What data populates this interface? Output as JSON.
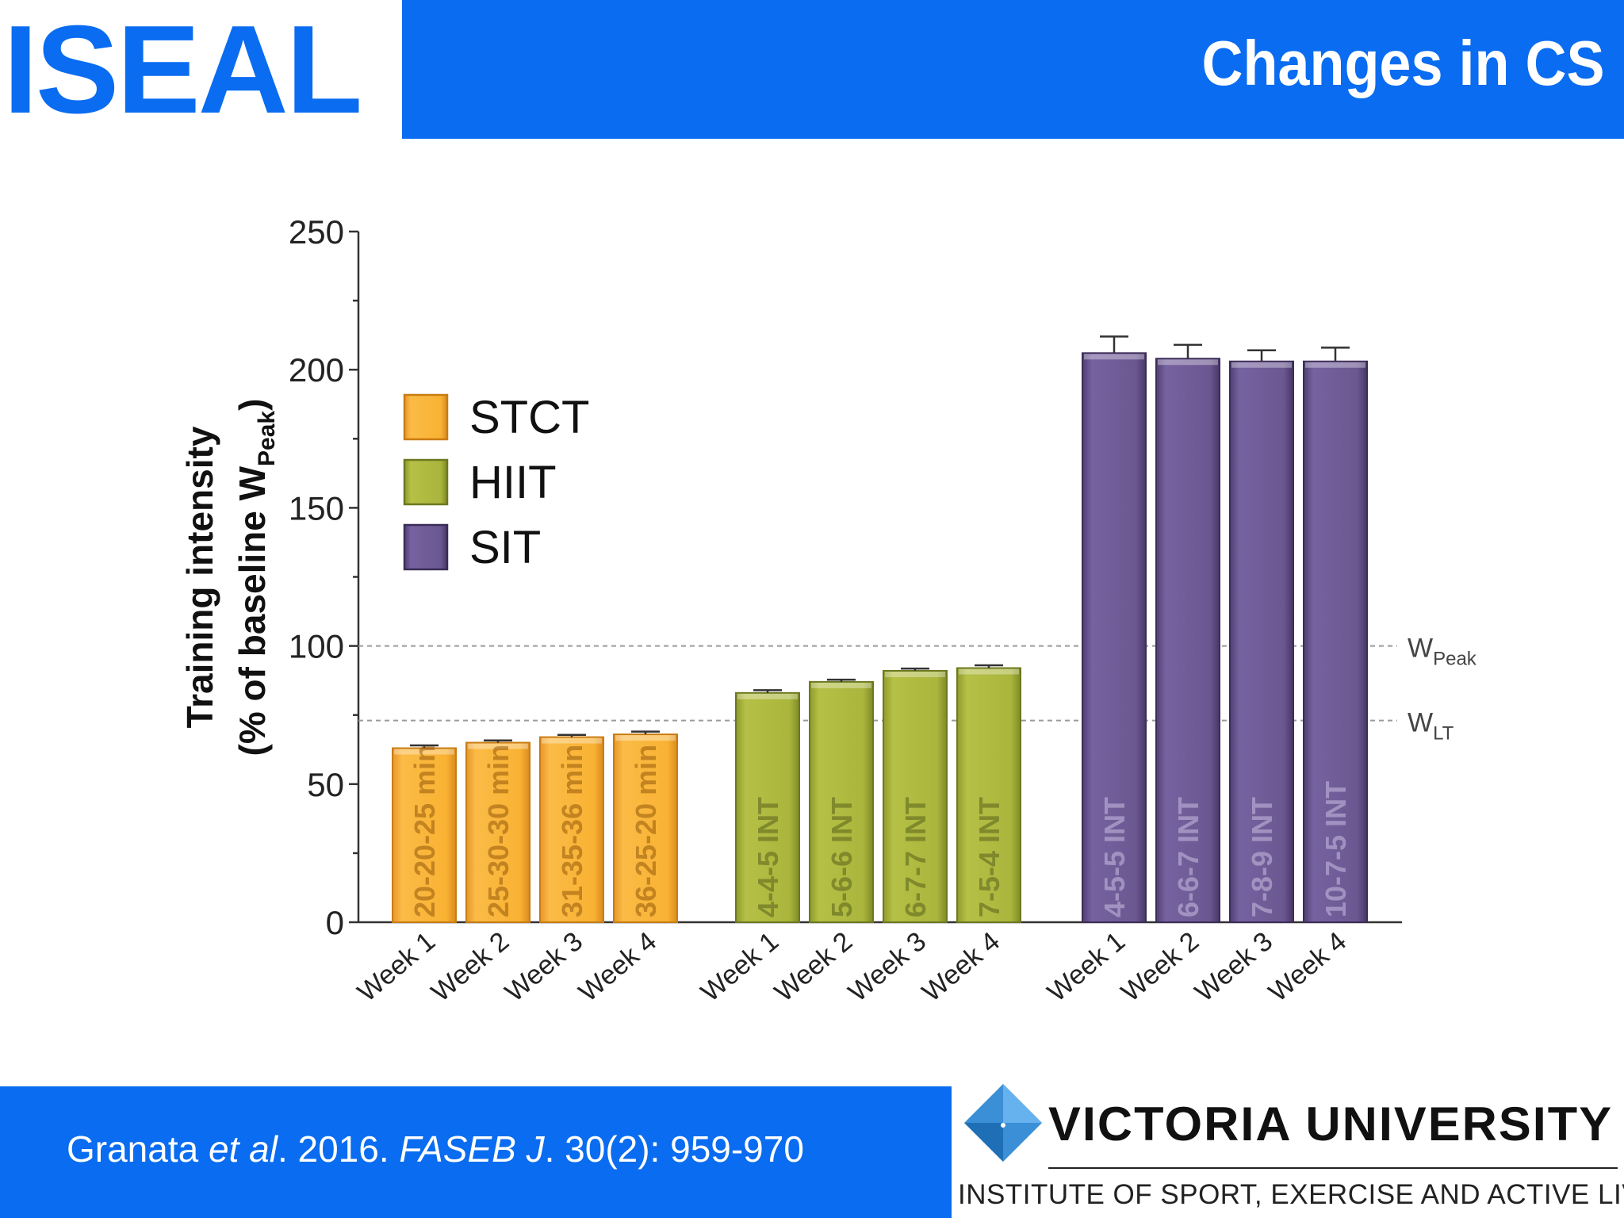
{
  "header": {
    "logo": "ISEAL",
    "title": "Changes in CS"
  },
  "footer": {
    "citation_authors": "Granata ",
    "citation_etal": "et al",
    "citation_mid": ". 2016. ",
    "citation_journal": "FASEB J",
    "citation_tail": ". 30(2): 959-970",
    "university": "VICTORIA UNIVERSITY",
    "institute": "INSTITUTE OF SPORT, EXERCISE AND ACTIVE LIVING"
  },
  "colors": {
    "brand_blue": "#0a6cf0",
    "stct": "#f9b233",
    "hiit": "#a9b53c",
    "sit": "#6b5790"
  },
  "chart_data": {
    "type": "bar",
    "ylabel_line1": "Training intensity",
    "ylabel_line2_prefix": "(% of baseline W",
    "ylabel_line2_sub": "Peak",
    "ylabel_line2_suffix": ")",
    "ylim": [
      0,
      250
    ],
    "yticks": [
      0,
      50,
      100,
      150,
      200,
      250
    ],
    "grid": false,
    "legend_position": "top-left",
    "legend": [
      "STCT",
      "HIIT",
      "SIT"
    ],
    "reference_lines": [
      {
        "value": 100,
        "label": "W",
        "sub": "Peak"
      },
      {
        "value": 73,
        "label": "W",
        "sub": "LT"
      }
    ],
    "series": [
      {
        "name": "STCT",
        "categories": [
          "Week 1",
          "Week 2",
          "Week 3",
          "Week 4"
        ],
        "values": [
          63,
          65,
          67,
          68
        ],
        "errors": [
          1,
          0.8,
          0.8,
          1
        ],
        "bar_labels": [
          "20-20-25 min",
          "25-30-30 min",
          "31-35-36 min",
          "36-25-20 min"
        ]
      },
      {
        "name": "HIIT",
        "categories": [
          "Week 1",
          "Week 2",
          "Week 3",
          "Week 4"
        ],
        "values": [
          83,
          87,
          91,
          92
        ],
        "errors": [
          1,
          0.8,
          0.8,
          1
        ],
        "bar_labels": [
          "4-4-5 INT",
          "5-6-6 INT",
          "6-7-7 INT",
          "7-5-4 INT"
        ]
      },
      {
        "name": "SIT",
        "categories": [
          "Week 1",
          "Week 2",
          "Week 3",
          "Week 4"
        ],
        "values": [
          206,
          204,
          203,
          203
        ],
        "errors": [
          6,
          5,
          4,
          5
        ],
        "bar_labels": [
          "4-5-5 INT",
          "6-6-7 INT",
          "7-8-9 INT",
          "10-7-5 INT"
        ]
      }
    ]
  }
}
